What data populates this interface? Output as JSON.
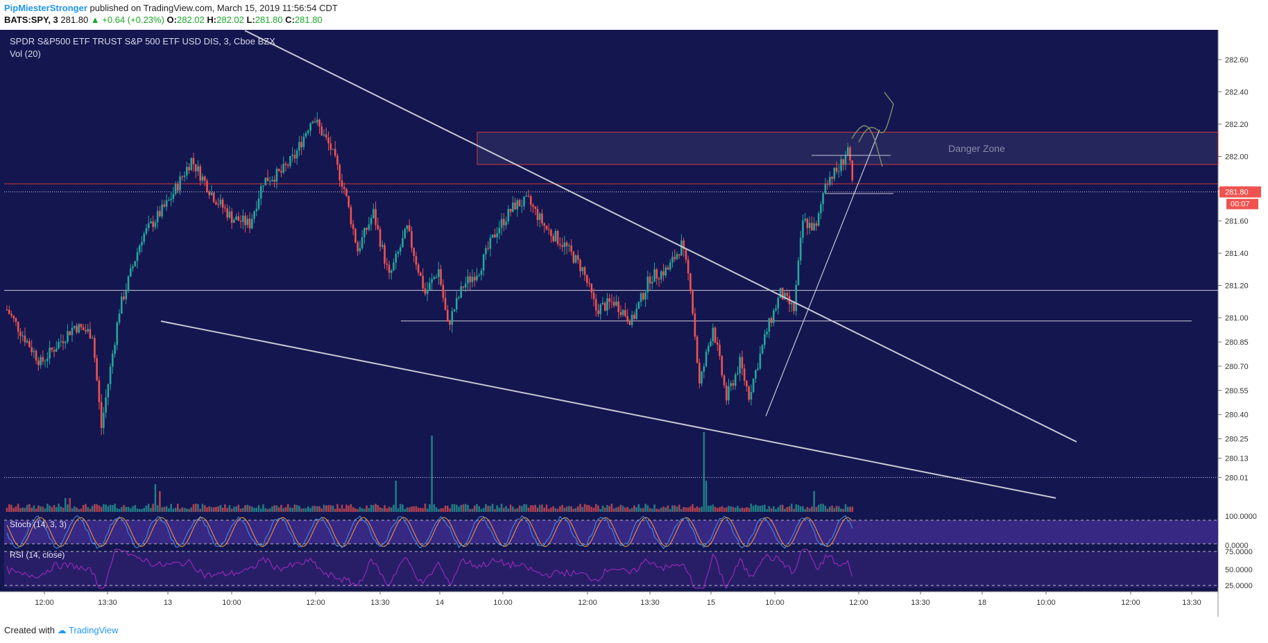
{
  "header": {
    "publisher": "PipMiesterStronger",
    "published_text": "published on TradingView.com, March 15, 2019 11:56:54 CDT",
    "symbol": "BATS:SPY, 3",
    "last": "281.80",
    "change": "+0.64 (+0.23%)",
    "o_label": "O:",
    "o": "282.02",
    "h_label": "H:",
    "h": "282.02",
    "l_label": "L:",
    "l": "281.80",
    "c_label": "C:",
    "c": "281.80"
  },
  "legend": {
    "title": "SPDR S&P500 ETF TRUST S&P 500 ETF USD DIS, 3, Cboe BZX",
    "vol": "Vol (20)",
    "stoch": "Stoch (14, 3, 3)",
    "rsi": "RSI (14, close)"
  },
  "footer": {
    "created_with": "Created with",
    "brand": "TradingView"
  },
  "colors": {
    "background": "#141650",
    "up": "#26a69a",
    "down": "#ef5350",
    "trendline": "#c8c8d2",
    "zone": "#d03a3a",
    "stoch_k": "#4a90e2",
    "stoch_d": "#ff9a3c",
    "rsi": "#a52cc0",
    "indicator_bg": "#3b2a8a"
  },
  "chart_data": {
    "type": "candlestick",
    "symbol": "BATS:SPY, 3",
    "ylim": [
      279.9,
      282.72
    ],
    "price_ticks": [
      "282.60",
      "282.40",
      "282.20",
      "282.00",
      "281.80",
      "281.60",
      "281.40",
      "281.20",
      "281.00",
      "280.85",
      "280.70",
      "280.55",
      "280.40",
      "280.25",
      "280.13",
      "280.01"
    ],
    "price_tick_values": [
      282.6,
      282.4,
      282.2,
      282.0,
      281.8,
      281.6,
      281.4,
      281.2,
      281.0,
      280.85,
      280.7,
      280.55,
      280.4,
      280.25,
      280.13,
      280.01
    ],
    "last_price_label": "281.80",
    "countdown_label": "00:07",
    "time_ticks": [
      "12:00",
      "13:30",
      "13",
      "10:00",
      "12:00",
      "13:30",
      "14",
      "10:00",
      "12:00",
      "13:30",
      "15",
      "10:00",
      "12:00",
      "13:30",
      "18",
      "10:00",
      "12:00",
      "13:30"
    ],
    "annotations": [
      {
        "type": "rectangle",
        "label": "Danger Zone",
        "price_top": 282.15,
        "price_bottom": 281.95
      }
    ],
    "key_prices": [
      281.83,
      281.78,
      281.17,
      280.98,
      280.01
    ],
    "indicator_ticks": {
      "stoch": [
        "100.0000",
        "0.0000"
      ],
      "rsi": [
        "75.0000",
        "50.0000",
        "25.0000"
      ]
    },
    "anchors": [
      {
        "bar": 0,
        "price": 281.05
      },
      {
        "bar": 15,
        "price": 280.72
      },
      {
        "bar": 30,
        "price": 280.95
      },
      {
        "bar": 38,
        "price": 280.9
      },
      {
        "bar": 42,
        "price": 280.32
      },
      {
        "bar": 50,
        "price": 281.05
      },
      {
        "bar": 60,
        "price": 281.5
      },
      {
        "bar": 72,
        "price": 281.72
      },
      {
        "bar": 82,
        "price": 281.98
      },
      {
        "bar": 92,
        "price": 281.75
      },
      {
        "bar": 100,
        "price": 281.62
      },
      {
        "bar": 108,
        "price": 281.58
      },
      {
        "bar": 114,
        "price": 281.85
      },
      {
        "bar": 122,
        "price": 281.9
      },
      {
        "bar": 128,
        "price": 282.0
      },
      {
        "bar": 136,
        "price": 282.25
      },
      {
        "bar": 144,
        "price": 282.05
      },
      {
        "bar": 150,
        "price": 281.8
      },
      {
        "bar": 156,
        "price": 281.42
      },
      {
        "bar": 163,
        "price": 281.65
      },
      {
        "bar": 170,
        "price": 281.25
      },
      {
        "bar": 178,
        "price": 281.55
      },
      {
        "bar": 186,
        "price": 281.15
      },
      {
        "bar": 192,
        "price": 281.3
      },
      {
        "bar": 196,
        "price": 280.95
      },
      {
        "bar": 203,
        "price": 281.2
      },
      {
        "bar": 210,
        "price": 281.3
      },
      {
        "bar": 218,
        "price": 281.55
      },
      {
        "bar": 226,
        "price": 281.7
      },
      {
        "bar": 232,
        "price": 281.72
      },
      {
        "bar": 240,
        "price": 281.55
      },
      {
        "bar": 248,
        "price": 281.45
      },
      {
        "bar": 256,
        "price": 281.3
      },
      {
        "bar": 262,
        "price": 281.05
      },
      {
        "bar": 270,
        "price": 281.1
      },
      {
        "bar": 278,
        "price": 280.98
      },
      {
        "bar": 286,
        "price": 281.25
      },
      {
        "bar": 294,
        "price": 281.3
      },
      {
        "bar": 300,
        "price": 281.45
      },
      {
        "bar": 304,
        "price": 281.2
      },
      {
        "bar": 308,
        "price": 280.58
      },
      {
        "bar": 314,
        "price": 280.95
      },
      {
        "bar": 320,
        "price": 280.5
      },
      {
        "bar": 326,
        "price": 280.72
      },
      {
        "bar": 330,
        "price": 280.52
      },
      {
        "bar": 338,
        "price": 280.92
      },
      {
        "bar": 344,
        "price": 281.15
      },
      {
        "bar": 350,
        "price": 281.05
      },
      {
        "bar": 354,
        "price": 281.6
      },
      {
        "bar": 360,
        "price": 281.55
      },
      {
        "bar": 364,
        "price": 281.85
      },
      {
        "bar": 370,
        "price": 281.92
      },
      {
        "bar": 374,
        "price": 282.05
      },
      {
        "bar": 376,
        "price": 281.82
      }
    ]
  }
}
